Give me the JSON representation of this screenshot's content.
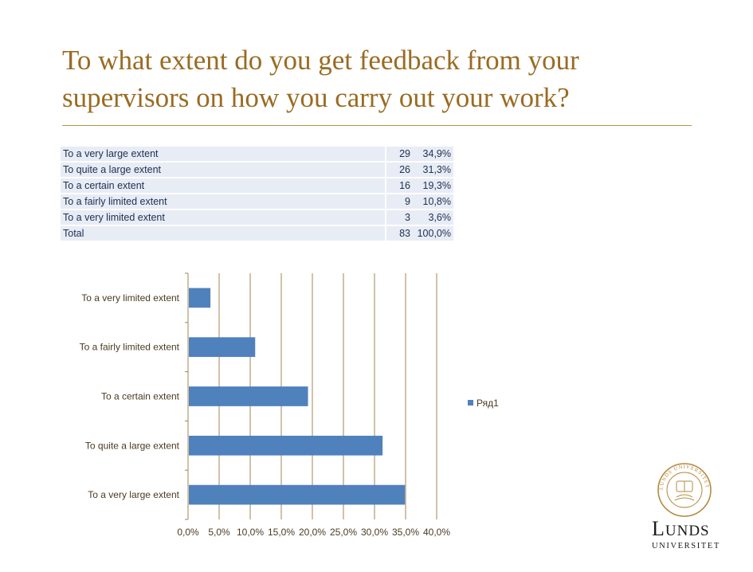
{
  "title": "To what extent do you get feedback from your supervisors on how you carry out your work?",
  "table": {
    "rows": [
      {
        "label": "To a very large extent",
        "count": "29",
        "pct": "34,9%"
      },
      {
        "label": "To quite a large extent",
        "count": "26",
        "pct": "31,3%"
      },
      {
        "label": "To a certain extent",
        "count": "16",
        "pct": "19,3%"
      },
      {
        "label": "To a fairly limited extent",
        "count": "9",
        "pct": "10,8%"
      },
      {
        "label": "To a very limited extent",
        "count": "3",
        "pct": "3,6%"
      },
      {
        "label": "Total",
        "count": "83",
        "pct": "100,0%"
      }
    ]
  },
  "chart_data": {
    "type": "bar",
    "orientation": "horizontal",
    "categories": [
      "To a very large extent",
      "To quite a large extent",
      "To a certain extent",
      "To a fairly limited extent",
      "To a very limited extent"
    ],
    "series": [
      {
        "name": "Ряд1",
        "values": [
          34.9,
          31.3,
          19.3,
          10.8,
          3.6
        ],
        "color": "#4f81bd"
      }
    ],
    "xlim": [
      0,
      40
    ],
    "xticks": [
      "0,0%",
      "5,0%",
      "10,0%",
      "15,0%",
      "20,0%",
      "25,0%",
      "30,0%",
      "35,0%",
      "40,0%"
    ],
    "grid": true,
    "legend_position": "right"
  },
  "logo": {
    "name_big": "L",
    "name_rest": "UNDS",
    "sub": "UNIVERSITET",
    "seal_text": "LUNDS UNIVERSITET"
  }
}
